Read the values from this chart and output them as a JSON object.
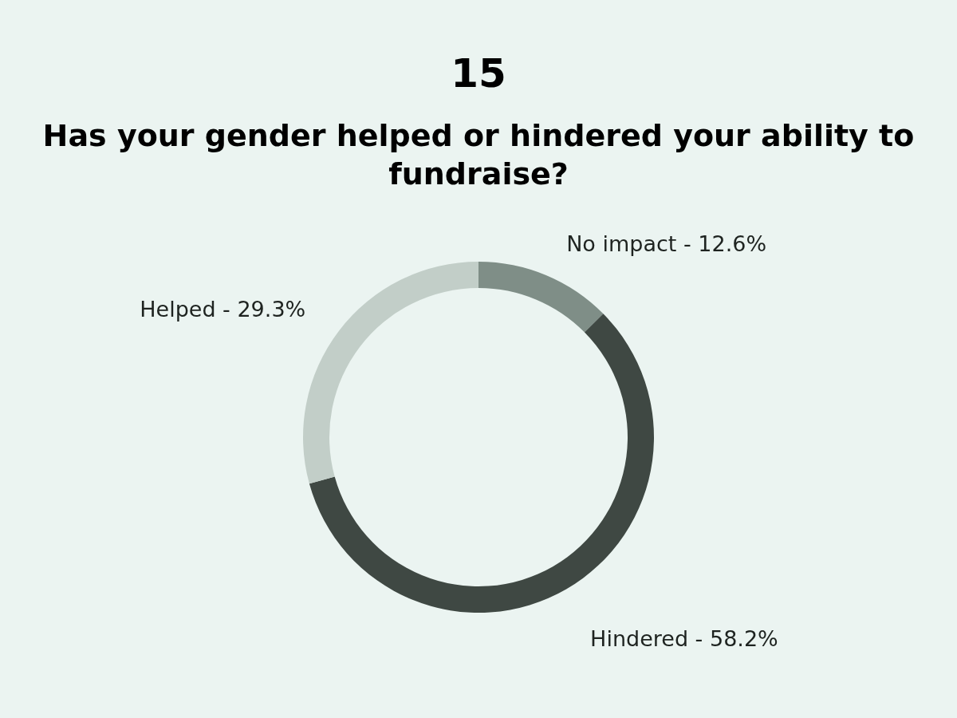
{
  "chart_data": {
    "type": "donut",
    "title": "15",
    "subtitle": "Has your gender helped or hindered your ability to fundraise?",
    "categories": [
      "No impact - 12.6%",
      "Hindered - 58.2%",
      "Helped - 29.3%"
    ],
    "values": [
      12.6,
      58.2,
      29.3
    ],
    "colors": [
      "#7f8e87",
      "#3f4843",
      "#c2cec8"
    ],
    "legend": false
  }
}
